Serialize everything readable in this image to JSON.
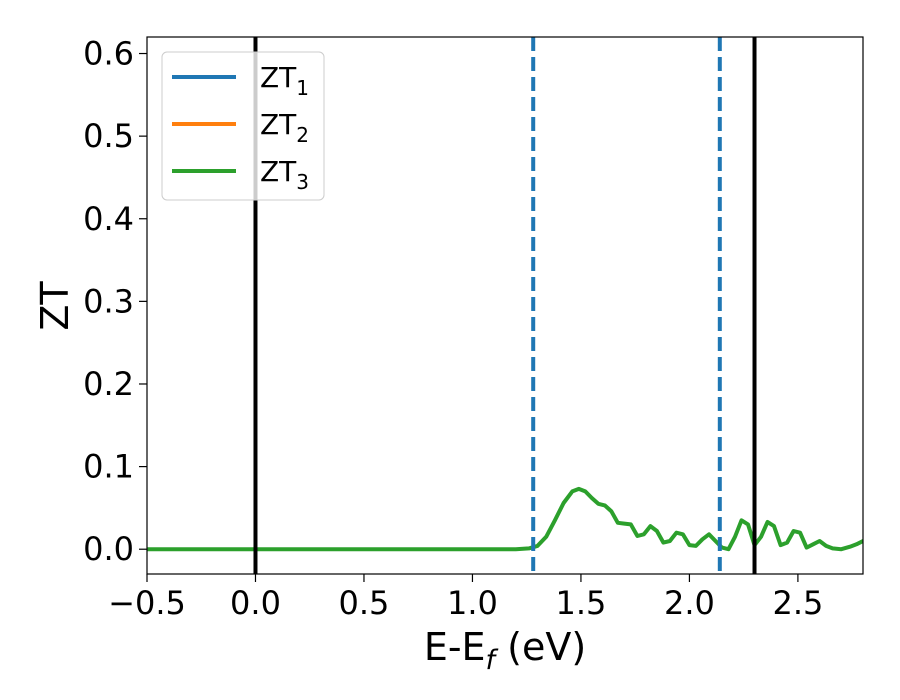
{
  "chart_data": {
    "type": "line",
    "xlabel": "E-E",
    "xlabel_sub": "f",
    "xlabel_unit": " (eV)",
    "ylabel": "ZT",
    "xlim": [
      -0.5,
      2.8
    ],
    "ylim": [
      -0.03,
      0.62
    ],
    "x_ticks": [
      -0.5,
      0.0,
      0.5,
      1.0,
      1.5,
      2.0,
      2.5
    ],
    "x_tick_labels": [
      "−0.5",
      "0.0",
      "0.5",
      "1.0",
      "1.5",
      "2.0",
      "2.5"
    ],
    "y_ticks": [
      0.0,
      0.1,
      0.2,
      0.3,
      0.4,
      0.5,
      0.6
    ],
    "y_tick_labels": [
      "0.0",
      "0.1",
      "0.2",
      "0.3",
      "0.4",
      "0.5",
      "0.6"
    ],
    "grid": false,
    "legend_placement": "upper-left",
    "series": [
      {
        "name": "ZT",
        "sub": "1",
        "color": "#1f77b4",
        "x": [],
        "y": []
      },
      {
        "name": "ZT",
        "sub": "2",
        "color": "#ff7f0e",
        "x": [],
        "y": []
      },
      {
        "name": "ZT",
        "sub": "3",
        "color": "#2ca02c",
        "x": [
          -0.5,
          0.0,
          0.5,
          1.0,
          1.2,
          1.26,
          1.3,
          1.34,
          1.38,
          1.42,
          1.46,
          1.49,
          1.52,
          1.55,
          1.58,
          1.61,
          1.64,
          1.67,
          1.7,
          1.73,
          1.76,
          1.79,
          1.82,
          1.85,
          1.88,
          1.91,
          1.94,
          1.97,
          2.0,
          2.03,
          2.06,
          2.09,
          2.12,
          2.15,
          2.18,
          2.21,
          2.24,
          2.27,
          2.3,
          2.33,
          2.36,
          2.39,
          2.42,
          2.45,
          2.48,
          2.51,
          2.54,
          2.57,
          2.6,
          2.63,
          2.66,
          2.7,
          2.74,
          2.77,
          2.8
        ],
        "y": [
          0.0,
          0.0,
          0.0,
          0.0,
          0.0,
          0.001,
          0.004,
          0.015,
          0.035,
          0.056,
          0.07,
          0.073,
          0.07,
          0.062,
          0.055,
          0.053,
          0.046,
          0.032,
          0.031,
          0.03,
          0.016,
          0.018,
          0.028,
          0.022,
          0.008,
          0.01,
          0.02,
          0.018,
          0.005,
          0.004,
          0.012,
          0.018,
          0.01,
          0.002,
          0.0,
          0.015,
          0.035,
          0.03,
          0.005,
          0.015,
          0.033,
          0.028,
          0.005,
          0.008,
          0.022,
          0.02,
          0.002,
          0.006,
          0.01,
          0.004,
          0.001,
          0.0,
          0.003,
          0.006,
          0.01
        ]
      }
    ],
    "vlines": [
      {
        "x": 0.0,
        "style": "solid",
        "color": "#000000"
      },
      {
        "x": 1.28,
        "style": "dashed",
        "color": "#1f77b4"
      },
      {
        "x": 2.14,
        "style": "dashed",
        "color": "#1f77b4"
      },
      {
        "x": 2.3,
        "style": "solid",
        "color": "#000000"
      }
    ]
  }
}
